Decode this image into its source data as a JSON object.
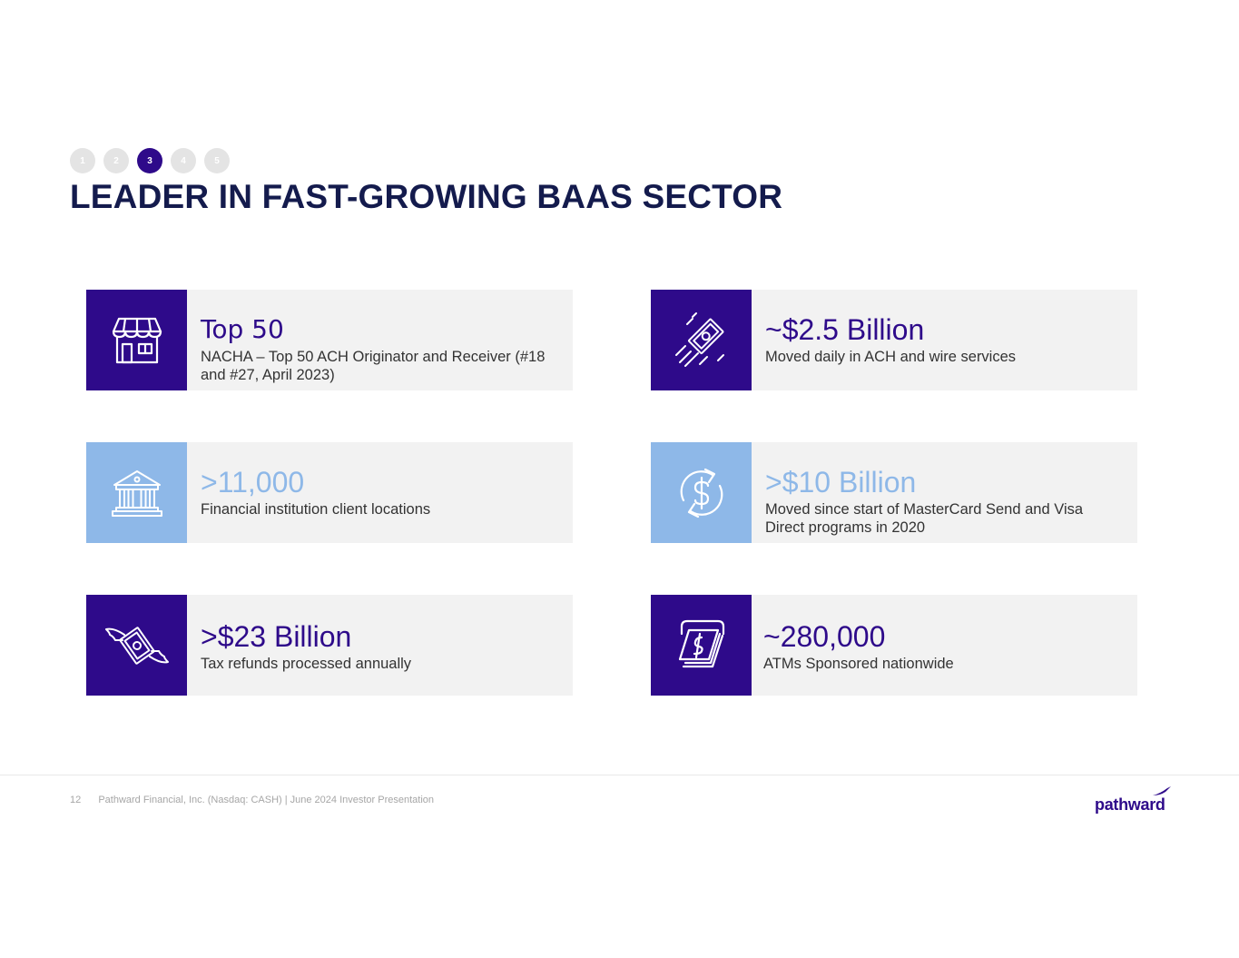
{
  "nav": {
    "steps": [
      "1",
      "2",
      "3",
      "4",
      "5"
    ],
    "active_step": "3"
  },
  "page_title": "LEADER IN FAST-GROWING BAAS SECTOR",
  "cards": [
    {
      "headline": "Top 50",
      "sub": "NACHA – Top 50 ACH Originator and Receiver (#18 and #27, April 2023)",
      "icon": "storefront-icon",
      "theme": "dark"
    },
    {
      "headline": "~$2.5 Billion",
      "sub": "Moved daily in ACH and wire services",
      "icon": "fast-money-icon",
      "theme": "dark"
    },
    {
      "headline": ">11,000",
      "sub": "Financial institution client locations",
      "icon": "bank-icon",
      "theme": "light"
    },
    {
      "headline": ">$10 Billion",
      "sub": "Moved since start of MasterCard Send and Visa Direct programs in 2020",
      "icon": "money-cycle-icon",
      "theme": "light"
    },
    {
      "headline": ">$23 Billion",
      "sub": "Tax refunds processed annually",
      "icon": "flying-money-icon",
      "theme": "dark"
    },
    {
      "headline": "~280,000",
      "sub": "ATMs Sponsored nationwide",
      "icon": "atm-cash-icon",
      "theme": "dark"
    }
  ],
  "footer": {
    "page_number": "12",
    "text": "Pathward Financial, Inc. (Nasdaq: CASH) | June 2024 Investor Presentation"
  },
  "logo": {
    "text": "pathward"
  },
  "colors": {
    "primary": "#2e0a8a",
    "light_blue": "#8eb8e8",
    "title": "#141b4d",
    "card_bg": "#f2f2f2"
  }
}
